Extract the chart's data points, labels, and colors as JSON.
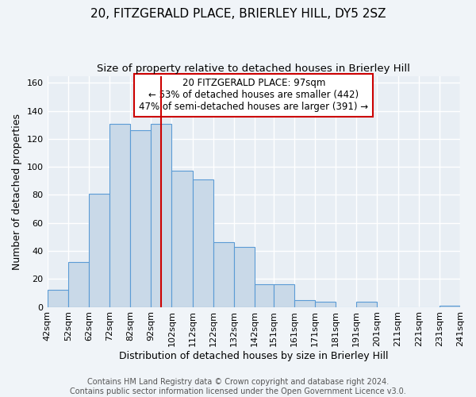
{
  "title": "20, FITZGERALD PLACE, BRIERLEY HILL, DY5 2SZ",
  "subtitle": "Size of property relative to detached houses in Brierley Hill",
  "xlabel": "Distribution of detached houses by size in Brierley Hill",
  "ylabel": "Number of detached properties",
  "bin_edges": [
    42,
    52,
    62,
    72,
    82,
    92,
    102,
    112,
    122,
    132,
    142,
    151,
    161,
    171,
    181,
    191,
    201,
    211,
    221,
    231,
    241
  ],
  "counts": [
    12,
    32,
    81,
    131,
    126,
    131,
    97,
    91,
    46,
    43,
    16,
    16,
    5,
    4,
    0,
    4,
    0,
    0,
    0,
    1
  ],
  "bar_color": "#c9d9e8",
  "bar_edge_color": "#5b9bd5",
  "vline_x": 97,
  "vline_color": "#cc0000",
  "annotation_text": "20 FITZGERALD PLACE: 97sqm\n← 53% of detached houses are smaller (442)\n47% of semi-detached houses are larger (391) →",
  "annotation_box_edgecolor": "#cc0000",
  "annotation_box_facecolor": "#ffffff",
  "yticks": [
    0,
    20,
    40,
    60,
    80,
    100,
    120,
    140,
    160
  ],
  "ylim": [
    0,
    165
  ],
  "tick_labels": [
    "42sqm",
    "52sqm",
    "62sqm",
    "72sqm",
    "82sqm",
    "92sqm",
    "102sqm",
    "112sqm",
    "122sqm",
    "132sqm",
    "142sqm",
    "151sqm",
    "161sqm",
    "171sqm",
    "181sqm",
    "191sqm",
    "201sqm",
    "211sqm",
    "221sqm",
    "231sqm",
    "241sqm"
  ],
  "footer_text": "Contains HM Land Registry data © Crown copyright and database right 2024.\nContains public sector information licensed under the Open Government Licence v3.0.",
  "background_color": "#f0f4f8",
  "plot_bg_color": "#e8eef4",
  "grid_color": "#ffffff",
  "title_fontsize": 11,
  "subtitle_fontsize": 9.5,
  "axis_label_fontsize": 9,
  "tick_fontsize": 8,
  "annotation_fontsize": 8.5,
  "footer_fontsize": 7
}
